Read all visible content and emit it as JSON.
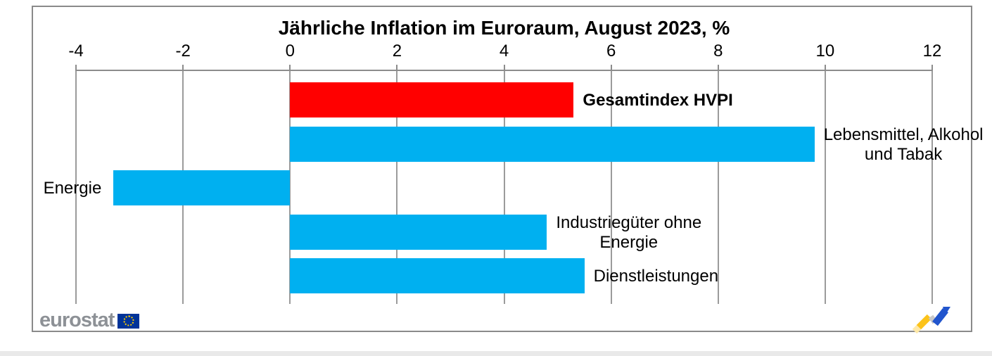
{
  "chart_data": {
    "type": "bar",
    "orientation": "horizontal",
    "title": "Jährliche Inflation im Euroraum, August 2023, %",
    "unit": "%",
    "x_axis": {
      "min": -4,
      "max": 12,
      "tick_step": 2,
      "ticks": [
        -4,
        -2,
        0,
        2,
        4,
        6,
        8,
        10,
        12
      ],
      "position": "top",
      "grid": true
    },
    "series": [
      {
        "label": "Gesamtindex HVPI",
        "label_lines": [
          "Gesamtindex HVPI"
        ],
        "value": 5.3,
        "color": "#ff0000",
        "label_bold": true
      },
      {
        "label": "Lebensmittel, Alkohol und Tabak",
        "label_lines": [
          "Lebensmittel, Alkohol",
          "und Tabak"
        ],
        "value": 9.8,
        "color": "#00b0f0",
        "label_bold": false
      },
      {
        "label": "Energie",
        "label_lines": [
          "Energie"
        ],
        "value": -3.3,
        "color": "#00b0f0",
        "label_bold": false
      },
      {
        "label": "Industriegüter ohne Energie",
        "label_lines": [
          "Industriegüter ohne",
          "Energie"
        ],
        "value": 4.8,
        "color": "#00b0f0",
        "label_bold": false
      },
      {
        "label": "Dienstleistungen",
        "label_lines": [
          "Dienstleistungen"
        ],
        "value": 5.5,
        "color": "#00b0f0",
        "label_bold": false
      }
    ]
  },
  "footer": {
    "brand": "eurostat"
  },
  "colors": {
    "bar_blue": "#00b0f0",
    "bar_red": "#ff0000",
    "grid_gray": "#9b9b9b",
    "frame_gray": "#8a8a8a",
    "eurostat_gray": "#8d9196",
    "eu_flag_blue": "#003399",
    "eu_flag_stars": "#ffcc00",
    "logo_yellow": "#fcc31a",
    "logo_blue": "#2155cd"
  }
}
